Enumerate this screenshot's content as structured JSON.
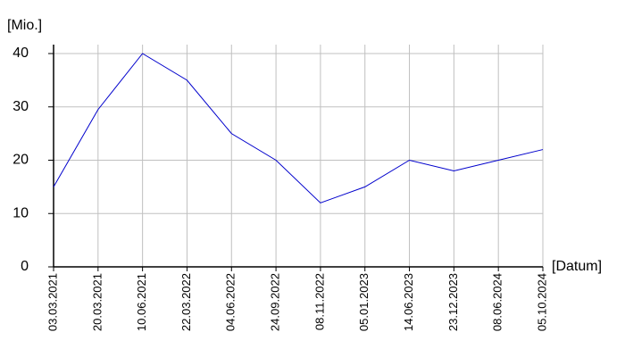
{
  "chart_data": {
    "type": "line",
    "y_label": "[Mio.]",
    "x_label": "[Datum]",
    "categories": [
      "03.03.2021",
      "20.03.2021",
      "10.06.2021",
      "22.03.2022",
      "04.06.2022",
      "24.09.2022",
      "08.11.2022",
      "05.01.2023",
      "14.06.2023",
      "23.12.2023",
      "08.06.2024",
      "05.10.2024"
    ],
    "values": [
      15,
      29.5,
      40,
      35,
      25,
      20,
      12,
      15,
      20,
      18,
      20,
      22
    ],
    "color": "#0000cc",
    "ylim": [
      0,
      40
    ],
    "yticks": [
      0,
      10,
      20,
      30,
      40
    ],
    "grid": true
  }
}
